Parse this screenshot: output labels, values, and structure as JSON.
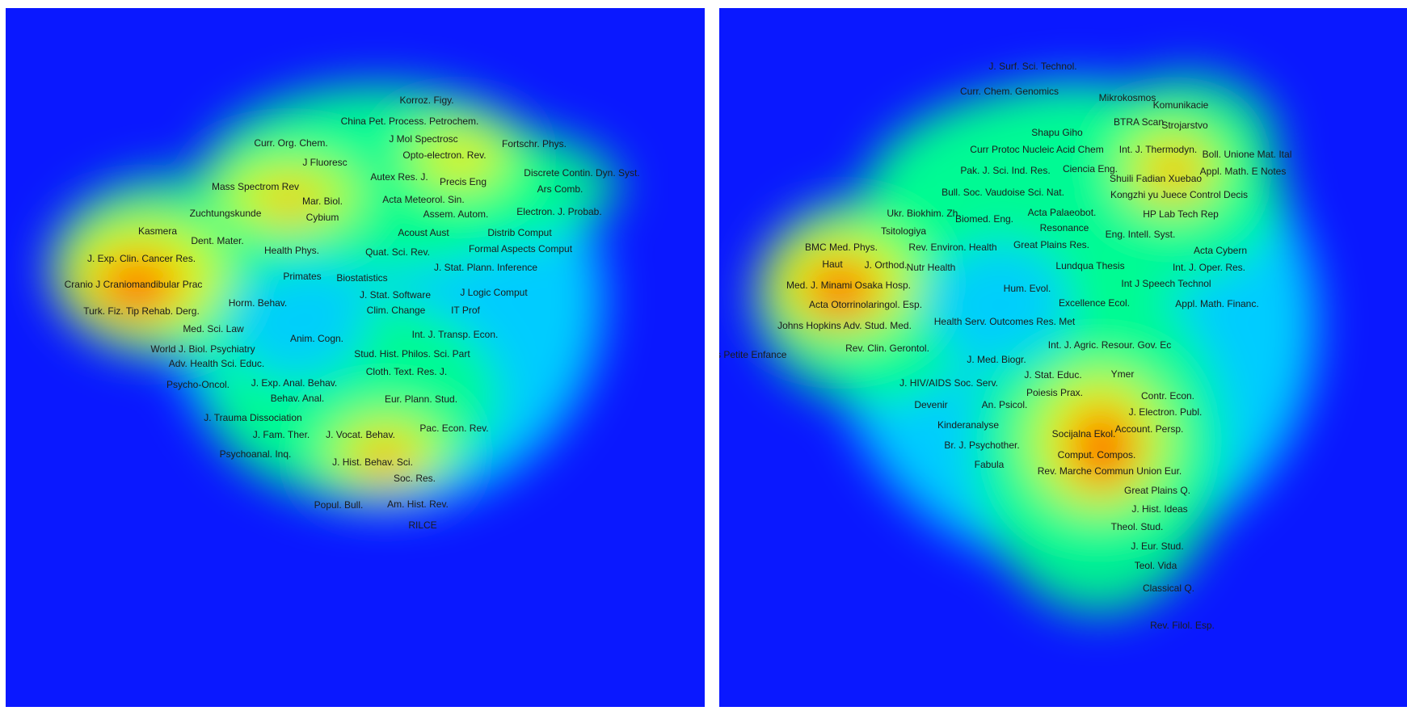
{
  "colors": {
    "background": "#0a18ff",
    "ramp": [
      "#0a18ff",
      "#00ccff",
      "#00ff88",
      "#ccff00",
      "#ffe000",
      "#ff3300"
    ]
  },
  "maps": [
    {
      "name": "left-map",
      "labels": [
        "Korroz. Figy.",
        "China Pet. Process. Petrochem.",
        "Curr. Org. Chem.",
        "J Mol Spectrosc",
        "Fortschr. Phys.",
        "Opto-electron. Rev.",
        "J Fluoresc",
        "Discrete Contin. Dyn. Syst.",
        "Autex Res. J.",
        "Precis Eng",
        "Ars Comb.",
        "Mass Spectrom Rev",
        "Mar. Biol.",
        "Acta Meteorol. Sin.",
        "Zuchtungskunde",
        "Assem. Autom.",
        "Electron. J. Probab.",
        "Cybium",
        "Kasmera",
        "Acoust Aust",
        "Distrib Comput",
        "Dent. Mater.",
        "Health Phys.",
        "Quat. Sci. Rev.",
        "Formal Aspects Comput",
        "J. Exp. Clin. Cancer Res.",
        "J. Stat. Plann. Inference",
        "Primates",
        "Biostatistics",
        "Cranio J Craniomandibular Prac",
        "J Logic Comput",
        "J. Stat. Software",
        "Horm. Behav.",
        "Turk. Fiz. Tip Rehab. Derg.",
        "Clim. Change",
        "IT Prof",
        "Med. Sci. Law",
        "Int. J. Transp. Econ.",
        "Anim. Cogn.",
        "World J. Biol. Psychiatry",
        "Stud. Hist. Philos. Sci. Part",
        "Adv. Health Sci. Educ.",
        "Cloth. Text. Res. J.",
        "Psycho-Oncol.",
        "J. Exp. Anal. Behav.",
        "Behav. Anal.",
        "Eur. Plann. Stud.",
        "J. Trauma Dissociation",
        "Pac. Econ. Rev.",
        "J. Fam. Ther.",
        "J. Vocat. Behav.",
        "Psychoanal. Inq.",
        "J. Hist. Behav. Sci.",
        "Soc. Res.",
        "Popul. Bull.",
        "Am. Hist. Rev.",
        "RILCE"
      ]
    },
    {
      "name": "right-map",
      "labels": [
        "J. Surf. Sci. Technol.",
        "Curr. Chem. Genomics",
        "Mikrokosmos",
        "Komunikacie",
        "BTRA Scan",
        "Strojarstvo",
        "Shapu Giho",
        "Curr Protoc Nucleic Acid Chem",
        "Int. J. Thermodyn.",
        "Boll. Unione Mat. Ital",
        "Ciencia Eng.",
        "Pak. J. Sci. Ind. Res.",
        "Shuili Fadian Xuebao",
        "Appl. Math. E Notes",
        "Bull. Soc. Vaudoise Sci. Nat.",
        "Kongzhi yu Juece Control Decis",
        "Acta Palaeobot.",
        "Ukr. Biokhim. Zh.",
        "Biomed. Eng.",
        "HP Lab Tech Rep",
        "Resonance",
        "Tsitologiya",
        "Eng. Intell. Syst.",
        "Great Plains Res.",
        "BMC Med. Phys.",
        "Rev. Environ. Health",
        "Acta Cybern",
        "Haut",
        "J. Orthod.",
        "Nutr Health",
        "Lundqua Thesis",
        "Int. J. Oper. Res.",
        "Int J Speech Technol",
        "Med. J. Minami Osaka Hosp.",
        "Hum. Evol.",
        "Acta Otorrinolaringol. Esp.",
        "Excellence Ecol.",
        "Appl. Math. Financ.",
        "Johns Hopkins Adv. Stud. Med.",
        "Health Serv. Outcomes Res. Met",
        "Int. J. Agric. Resour. Gov. Ec",
        "Rev. Clin. Gerontol.",
        "rs Petite Enfance",
        "J. Med. Biogr.",
        "J. Stat. Educ.",
        "Ymer",
        "J. HIV/AIDS Soc. Serv.",
        "Poiesis Prax.",
        "Contr. Econ.",
        "Devenir",
        "An. Psicol.",
        "J. Electron. Publ.",
        "Kinderanalyse",
        "Account. Persp.",
        "Socijalna Ekol.",
        "Br. J. Psychother.",
        "Comput. Compos.",
        "Fabula",
        "Rev. Marche Commun Union Eur.",
        "Great Plains Q.",
        "J. Hist. Ideas",
        "Theol. Stud.",
        "J. Eur. Stud.",
        "Teol. Vida",
        "Classical Q.",
        "Rev. Filol. Esp."
      ]
    }
  ]
}
